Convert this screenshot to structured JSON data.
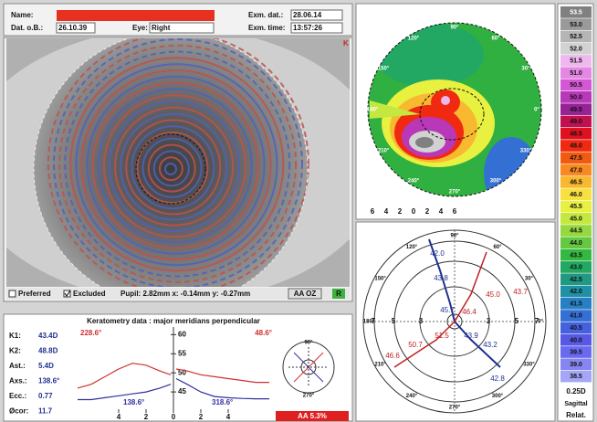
{
  "header": {
    "name_label": "Name:",
    "dob_label": "Dat. o.B.:",
    "dob": "26.10.39",
    "eye_label": "Eye:",
    "eye": "Right",
    "exam_date_label": "Exm. dat.:",
    "exam_date": "28.06.14",
    "exam_time_label": "Exm. time:",
    "exam_time": "13:57:26"
  },
  "image_panel": {
    "corner_mark": "K",
    "preferred": "Preferred",
    "excluded": "Excluded",
    "pupil": "Pupil: 2.82mm x: -0.14mm y: -0.27mm",
    "oz_button": "AA OZ",
    "status": "R"
  },
  "keratometry": {
    "title": "Keratometry data : major meridians perpendicular",
    "rows": [
      [
        "K1:",
        "43.4D"
      ],
      [
        "K2:",
        "48.8D"
      ],
      [
        "Ast.:",
        "5.4D"
      ],
      [
        "Axs.:",
        "138.6°"
      ],
      [
        "Ecc.:",
        "0.77"
      ],
      [
        "Øcor:",
        "11.7"
      ]
    ],
    "graph": {
      "steep_left": "228.6°",
      "steep_right": "48.6°",
      "flat_left": "138.6°",
      "flat_right": "318.6°",
      "x": [
        -7,
        -6,
        -5,
        -4,
        -3,
        -2,
        -1,
        -0.2,
        0,
        0.2,
        1,
        2,
        3,
        4,
        5,
        6,
        7
      ],
      "series": [
        {
          "color": "#d03030",
          "values": [
            46,
            47,
            49,
            51,
            52.5,
            52,
            50.5,
            49.5,
            null,
            51,
            50.5,
            49.5,
            49,
            48.5,
            48,
            47.5,
            47.5
          ]
        },
        {
          "color": "#3030a0",
          "values": [
            43,
            43,
            43.5,
            44,
            44.5,
            45,
            46,
            47,
            null,
            48.5,
            47,
            45,
            43.8,
            43.5,
            43.3,
            43.2,
            43.2
          ]
        }
      ],
      "xlim": [
        -7,
        7
      ],
      "ylim": [
        40,
        62
      ],
      "yticks": [
        45,
        50,
        55,
        60
      ],
      "xticks": [
        {
          "value": -4,
          "label": "4"
        },
        {
          "value": -2,
          "label": "2"
        },
        0,
        2,
        4
      ]
    },
    "inset_labels": [
      "90°",
      "270°"
    ],
    "aa": "AA 5.3%"
  },
  "topography": {
    "axis_labels": [
      "6",
      "4",
      "2",
      "0",
      "2",
      "4",
      "6"
    ],
    "angles": [
      "0°",
      "30°",
      "60°",
      "90°",
      "120°",
      "150°",
      "180°",
      "210°",
      "240°",
      "270°",
      "300°",
      "330°"
    ]
  },
  "rings": {
    "angles": [
      "0°",
      "30°",
      "60°",
      "90°",
      "120°",
      "150°",
      "180°",
      "210°",
      "240°",
      "270°",
      "300°",
      "330°"
    ],
    "ring_labels": [
      "7",
      "5",
      "3",
      "3",
      "5",
      "7"
    ],
    "values": [
      {
        "text": "42.0",
        "color": "#203090"
      },
      {
        "text": "43.8",
        "color": "#203090"
      },
      {
        "text": "45.7",
        "color": "#203090"
      },
      {
        "text": "46.4",
        "color": "#c02020"
      },
      {
        "text": "51.5",
        "color": "#c02020"
      },
      {
        "text": "43.9",
        "color": "#203090"
      },
      {
        "text": "43.2",
        "color": "#203090"
      },
      {
        "text": "42.8",
        "color": "#203090"
      },
      {
        "text": "50.7",
        "color": "#c02020"
      },
      {
        "text": "46.6",
        "color": "#c02020"
      },
      {
        "text": "45.0",
        "color": "#c02020"
      },
      {
        "text": "43.7",
        "color": "#c02020"
      }
    ]
  },
  "scale": {
    "entries": [
      {
        "label": "53.5",
        "color": "#808080"
      },
      {
        "label": "53.0",
        "color": "#9a9a9a"
      },
      {
        "label": "52.5",
        "color": "#b5b5b5"
      },
      {
        "label": "52.0",
        "color": "#d2d2d2"
      },
      {
        "label": "51.5",
        "color": "#eeb8ee"
      },
      {
        "label": "51.0",
        "color": "#e488e4"
      },
      {
        "label": "50.5",
        "color": "#d458d4"
      },
      {
        "label": "50.0",
        "color": "#b838b8"
      },
      {
        "label": "49.5",
        "color": "#962296"
      },
      {
        "label": "49.0",
        "color": "#c01050"
      },
      {
        "label": "48.5",
        "color": "#e01020"
      },
      {
        "label": "48.0",
        "color": "#f02a10"
      },
      {
        "label": "47.5",
        "color": "#f25a10"
      },
      {
        "label": "47.0",
        "color": "#f88a20"
      },
      {
        "label": "46.5",
        "color": "#f8b830"
      },
      {
        "label": "46.0",
        "color": "#f8e040"
      },
      {
        "label": "45.5",
        "color": "#e8f040"
      },
      {
        "label": "45.0",
        "color": "#c4e840"
      },
      {
        "label": "44.5",
        "color": "#96d840"
      },
      {
        "label": "44.0",
        "color": "#64c840"
      },
      {
        "label": "43.5",
        "color": "#34b840"
      },
      {
        "label": "43.0",
        "color": "#22a862"
      },
      {
        "label": "42.5",
        "color": "#209882"
      },
      {
        "label": "42.0",
        "color": "#2090a4"
      },
      {
        "label": "41.5",
        "color": "#2880c4"
      },
      {
        "label": "41.0",
        "color": "#3470d4"
      },
      {
        "label": "40.5",
        "color": "#4462e0"
      },
      {
        "label": "40.0",
        "color": "#5858e4"
      },
      {
        "label": "39.5",
        "color": "#6a6af0"
      },
      {
        "label": "39.0",
        "color": "#8686f2"
      },
      {
        "label": "38.5",
        "color": "#a6a6f8"
      }
    ],
    "step": "0.25D",
    "mode": "Sagittal",
    "ref": "Relat."
  }
}
